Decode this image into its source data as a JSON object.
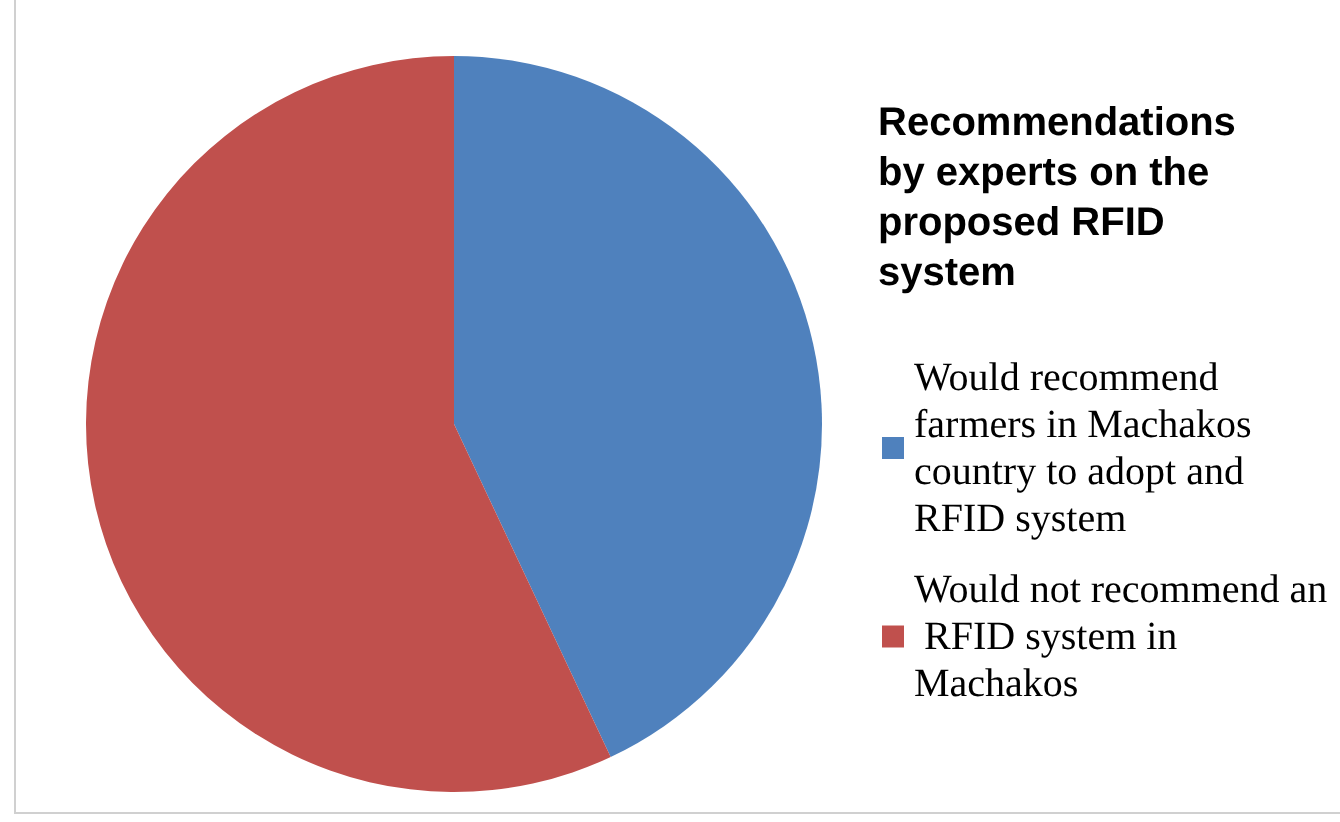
{
  "chart_data": {
    "type": "pie",
    "title": "Recommendations by experts on the proposed RFID system",
    "categories": [
      "Would recommend farmers in Machakos country to adopt and RFID system",
      "Would not recommend an RFID system in Machakos"
    ],
    "values": [
      43,
      57
    ],
    "colors": [
      "#4f81bd",
      "#c0504d"
    ],
    "legend": "right"
  }
}
